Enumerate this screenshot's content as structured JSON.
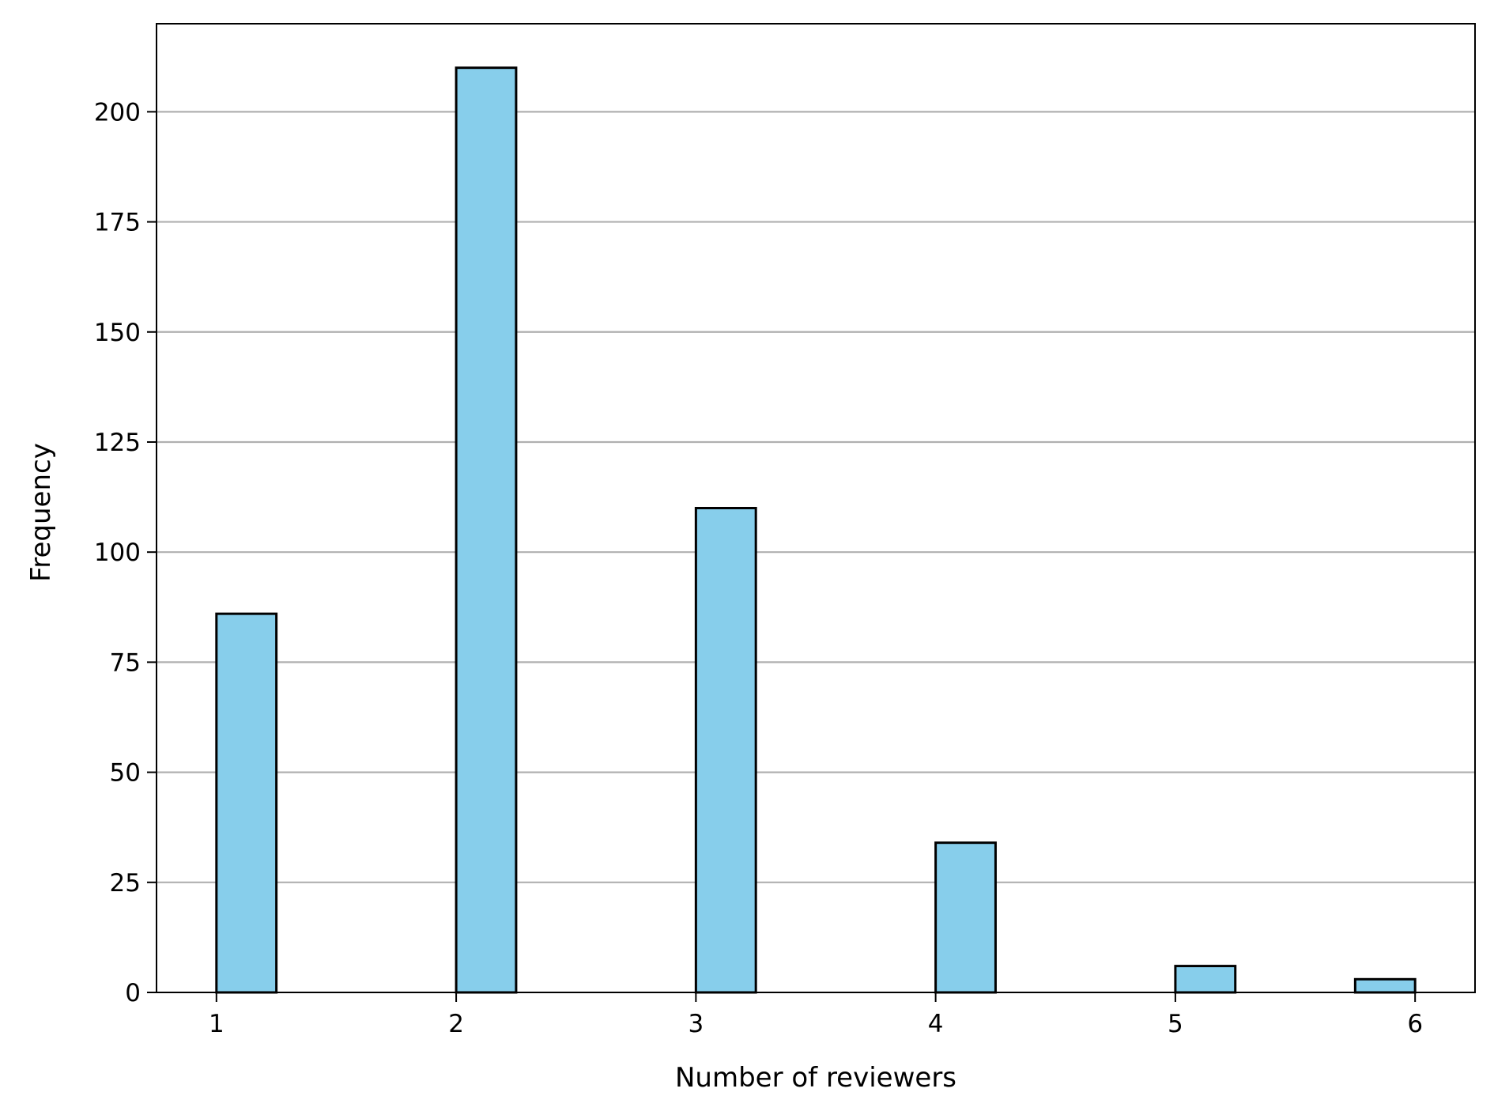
{
  "chart_data": {
    "type": "bar",
    "title": "",
    "xlabel": "Number of reviewers",
    "ylabel": "Frequency",
    "x_ticks": [
      1,
      2,
      3,
      4,
      5,
      6
    ],
    "y_ticks": [
      0,
      25,
      50,
      75,
      100,
      125,
      150,
      175,
      200
    ],
    "xlim": [
      0.75,
      6.25
    ],
    "ylim": [
      0,
      220
    ],
    "grid": "horizontal",
    "bars": [
      {
        "x_start": 1.0,
        "x_end": 1.25,
        "value": 86
      },
      {
        "x_start": 2.0,
        "x_end": 2.25,
        "value": 210
      },
      {
        "x_start": 3.0,
        "x_end": 3.25,
        "value": 110
      },
      {
        "x_start": 4.0,
        "x_end": 4.25,
        "value": 34
      },
      {
        "x_start": 5.0,
        "x_end": 5.25,
        "value": 6
      },
      {
        "x_start": 5.75,
        "x_end": 6.0,
        "value": 3
      }
    ],
    "bar_color": "#87CEEB",
    "edge_color": "#000000",
    "grid_color": "#b0b0b0"
  }
}
